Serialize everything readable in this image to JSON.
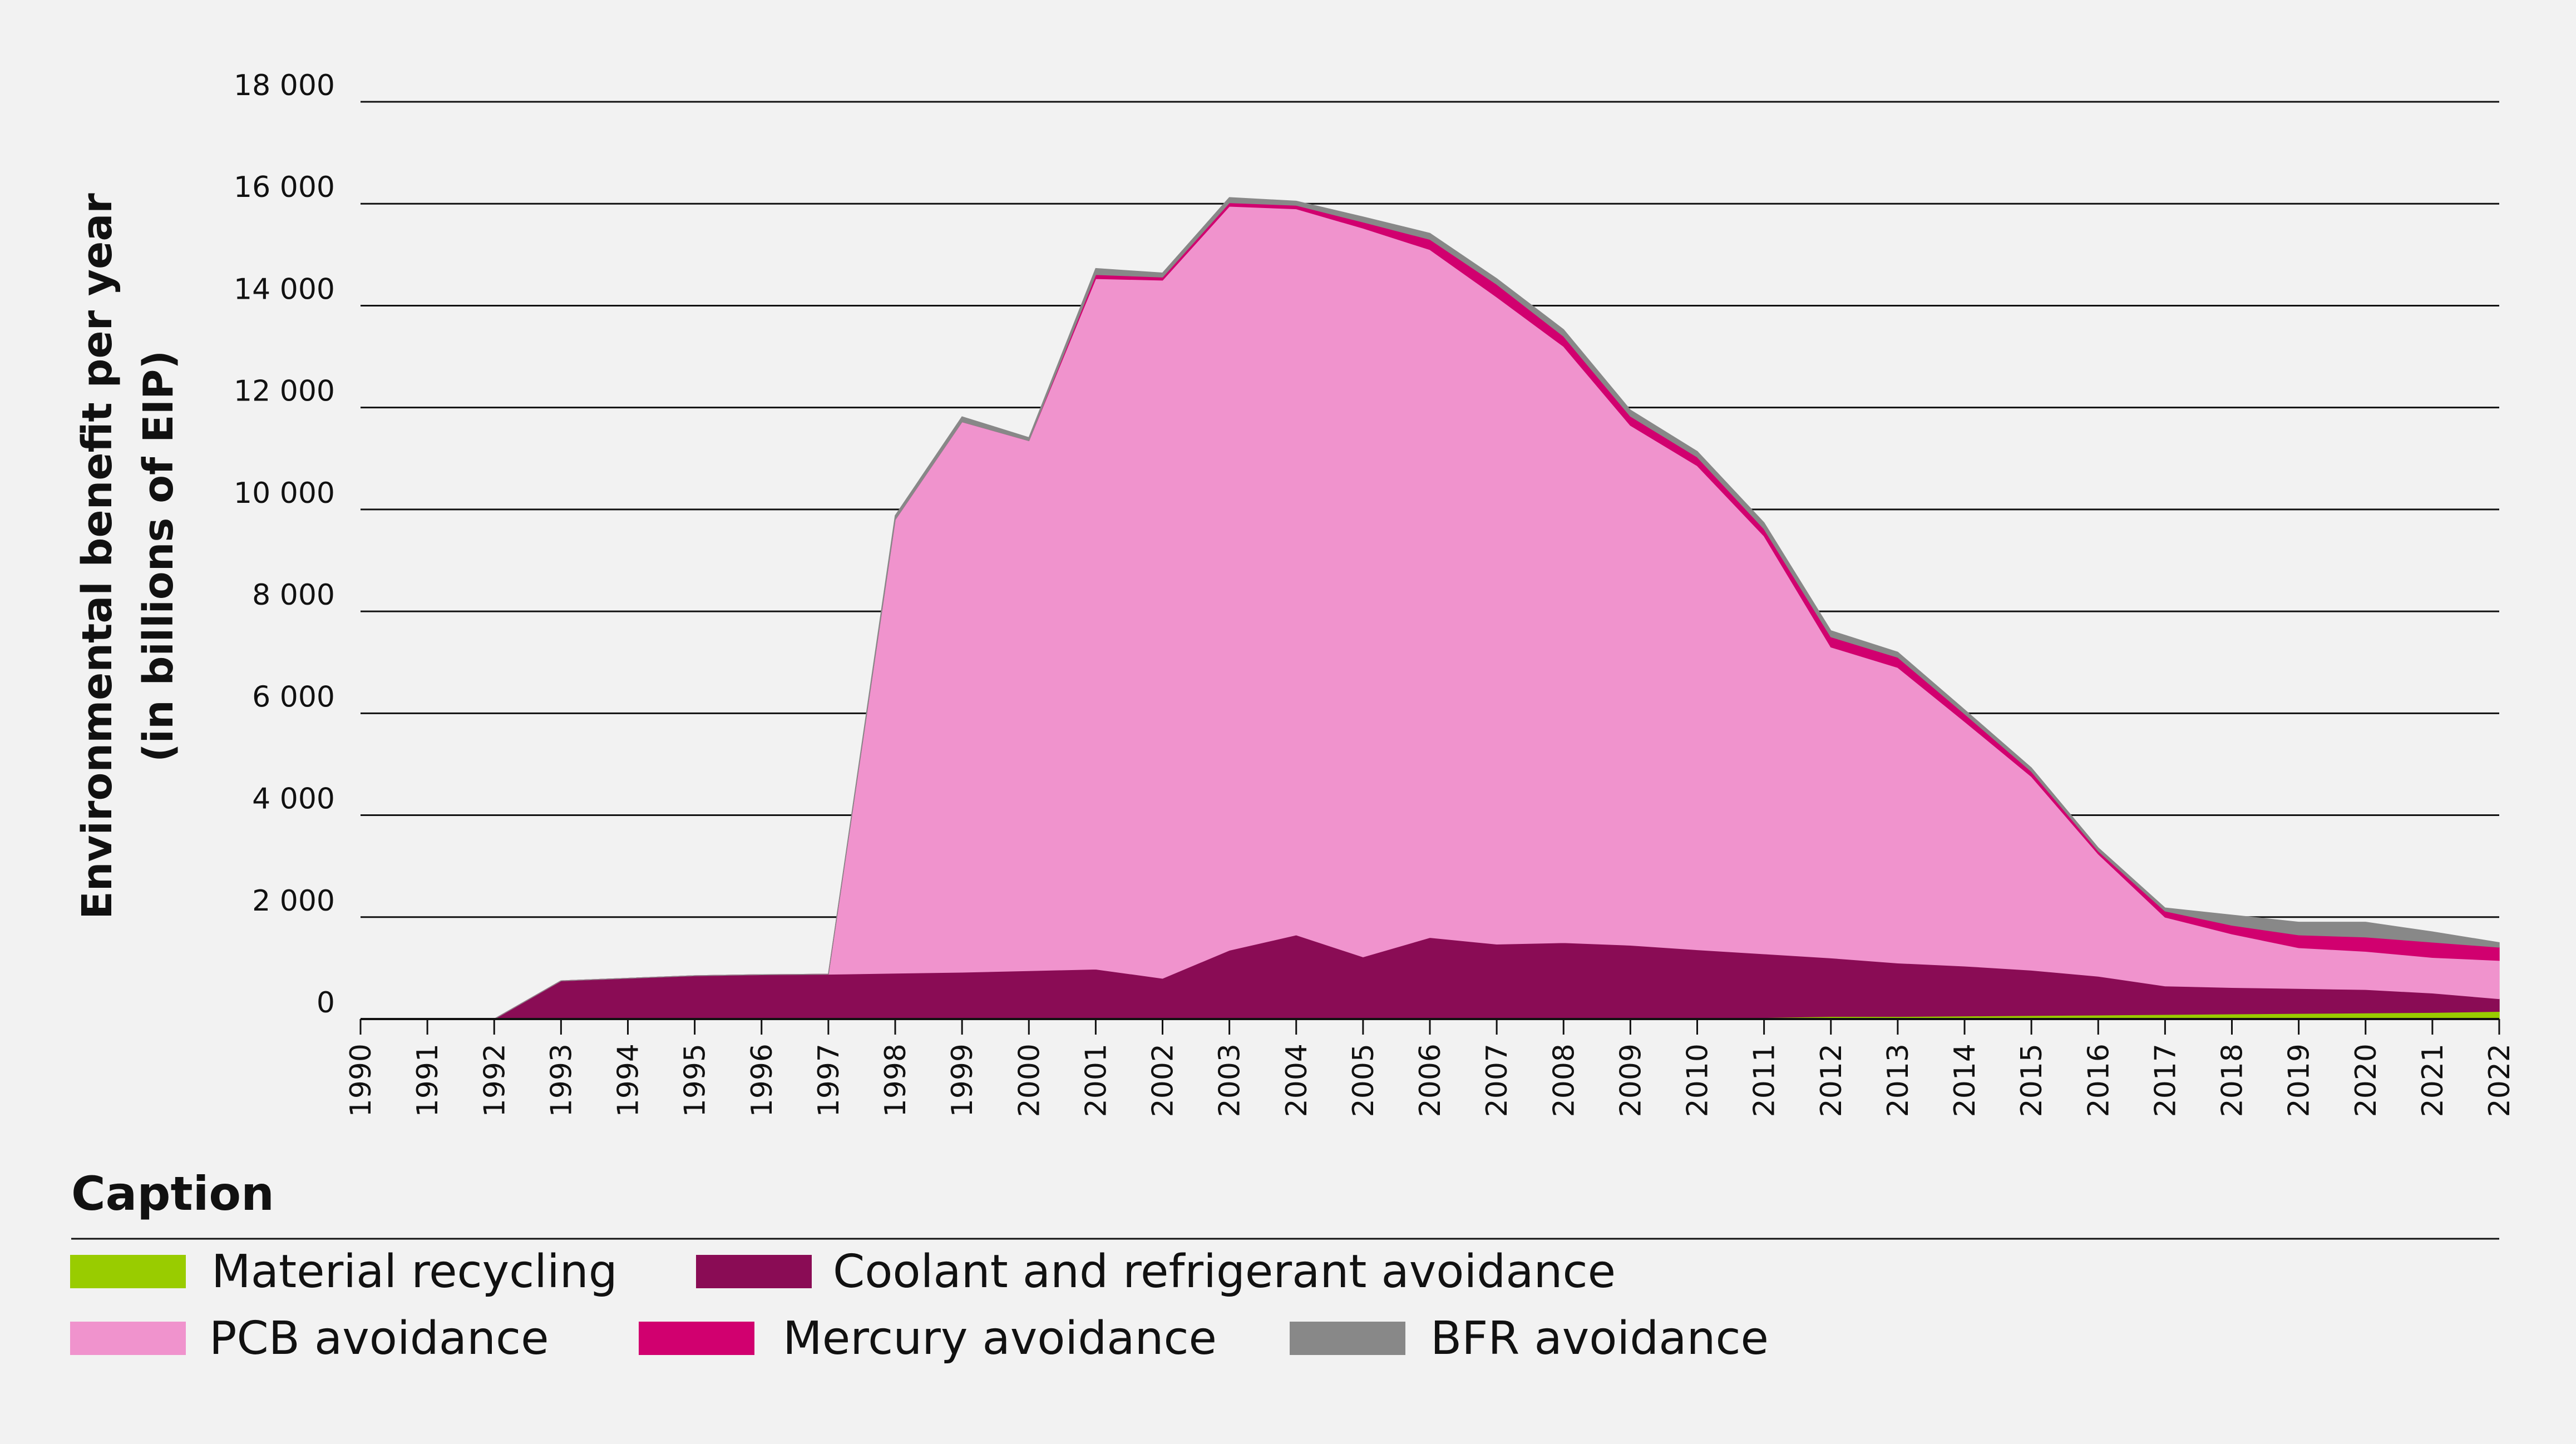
{
  "chart_data": {
    "type": "area",
    "stacked": true,
    "ylabel": [
      "Environmental benefit per year",
      "(in billions of EIP)"
    ],
    "ylim": [
      0,
      18000
    ],
    "yticks": [
      0,
      2000,
      4000,
      6000,
      8000,
      10000,
      12000,
      14000,
      16000,
      18000
    ],
    "ytick_labels": [
      "0",
      "2 000",
      "4 000",
      "6 000",
      "8 000",
      "10 000",
      "12 000",
      "14 000",
      "16 000",
      "18 000"
    ],
    "x": [
      "1990",
      "1991",
      "1992",
      "1993",
      "1994",
      "1995",
      "1996",
      "1997",
      "1998",
      "1999",
      "2000",
      "2001",
      "2002",
      "2003",
      "2004",
      "2005",
      "2006",
      "2007",
      "2008",
      "2009",
      "2010",
      "2011",
      "2012",
      "2013",
      "2014",
      "2015",
      "2016",
      "2017",
      "2018",
      "2019",
      "2020",
      "2021",
      "2022"
    ],
    "grid": true,
    "legend_title": "Caption",
    "legend_position": "bottom",
    "series": [
      {
        "name": "Material recycling",
        "color": "#99cc00",
        "values": [
          0,
          0,
          0,
          0,
          0,
          0,
          0,
          0,
          0,
          0,
          0,
          0,
          0,
          0,
          0,
          0,
          0,
          0,
          0,
          0,
          0,
          30,
          50,
          50,
          60,
          70,
          80,
          90,
          100,
          110,
          120,
          130,
          150
        ]
      },
      {
        "name": "Coolant and refrigerant avoidance",
        "color": "#8a0c55",
        "values": [
          0,
          0,
          0,
          750,
          800,
          850,
          870,
          880,
          900,
          920,
          950,
          980,
          800,
          1350,
          1650,
          1220,
          1600,
          1470,
          1500,
          1450,
          1360,
          1250,
          1150,
          1050,
          980,
          890,
          760,
          560,
          520,
          490,
          460,
          380,
          250
        ]
      },
      {
        "name": "PCB avoidance",
        "color": "#f093cd",
        "values": [
          0,
          0,
          0,
          0,
          0,
          0,
          0,
          0,
          8900,
          10800,
          10400,
          13550,
          13700,
          14600,
          14250,
          14300,
          13500,
          12700,
          11700,
          10200,
          9500,
          8200,
          6100,
          5800,
          4800,
          3800,
          2400,
          1350,
          1050,
          800,
          750,
          700,
          750
        ]
      },
      {
        "name": "Mercury avoidance",
        "color": "#d1006f",
        "values": [
          0,
          0,
          0,
          0,
          0,
          0,
          0,
          0,
          0,
          0,
          0,
          80,
          60,
          70,
          70,
          120,
          200,
          250,
          200,
          180,
          170,
          140,
          200,
          200,
          150,
          100,
          60,
          120,
          170,
          250,
          280,
          300,
          260
        ]
      },
      {
        "name": "BFR avoidance",
        "color": "#888888",
        "values": [
          0,
          0,
          0,
          0,
          0,
          0,
          0,
          0,
          80,
          100,
          60,
          120,
          80,
          100,
          80,
          100,
          120,
          110,
          130,
          120,
          110,
          120,
          120,
          100,
          80,
          70,
          60,
          60,
          200,
          250,
          290,
          200,
          90
        ]
      }
    ]
  }
}
